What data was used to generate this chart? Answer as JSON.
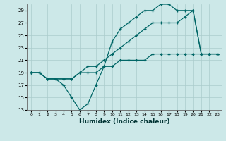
{
  "title": "",
  "xlabel": "Humidex (Indice chaleur)",
  "bg_color": "#cce8e8",
  "grid_color": "#aacccc",
  "line_color": "#006666",
  "xlim": [
    -0.5,
    23.5
  ],
  "ylim": [
    13,
    30
  ],
  "xticks": [
    0,
    1,
    2,
    3,
    4,
    5,
    6,
    7,
    8,
    9,
    10,
    11,
    12,
    13,
    14,
    15,
    16,
    17,
    18,
    19,
    20,
    21,
    22,
    23
  ],
  "yticks": [
    13,
    15,
    17,
    19,
    21,
    23,
    25,
    27,
    29
  ],
  "lx1": [
    0,
    1,
    2,
    3,
    4,
    5,
    6,
    7,
    8,
    9,
    10,
    11,
    12,
    13,
    14,
    15,
    16,
    17,
    18,
    19,
    20,
    21,
    22,
    23
  ],
  "ly1": [
    19,
    19,
    18,
    18,
    17,
    15,
    13,
    14,
    17,
    20,
    24,
    26,
    27,
    28,
    29,
    29,
    30,
    30,
    29,
    29,
    29,
    22,
    22,
    22
  ],
  "lx2": [
    0,
    1,
    2,
    3,
    4,
    5,
    6,
    7,
    8,
    9,
    10,
    11,
    12,
    13,
    14,
    15,
    16,
    17,
    18,
    19,
    20,
    21,
    22,
    23
  ],
  "ly2": [
    19,
    19,
    18,
    18,
    18,
    18,
    19,
    19,
    19,
    20,
    20,
    21,
    21,
    21,
    21,
    22,
    22,
    22,
    22,
    22,
    22,
    22,
    22,
    22
  ],
  "lx3": [
    0,
    1,
    2,
    3,
    4,
    5,
    6,
    7,
    8,
    9,
    10,
    11,
    12,
    13,
    14,
    15,
    16,
    17,
    18,
    19,
    20,
    21,
    22,
    23
  ],
  "ly3": [
    19,
    19,
    18,
    18,
    18,
    18,
    19,
    20,
    20,
    21,
    22,
    23,
    24,
    25,
    26,
    27,
    27,
    27,
    27,
    28,
    29,
    22,
    22,
    22
  ]
}
